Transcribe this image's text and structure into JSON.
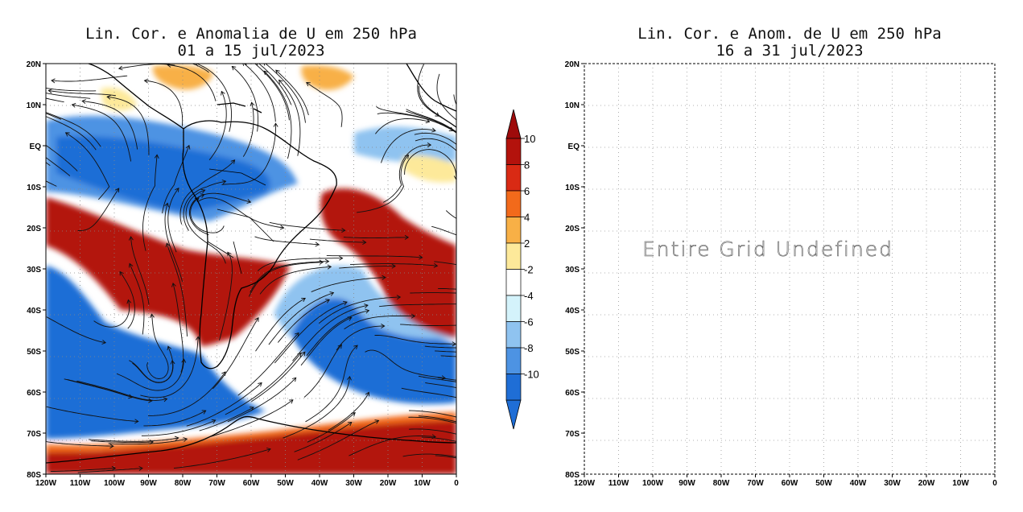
{
  "left_panel": {
    "title_line1": "Lin. Cor. e Anomalia de U em 250 hPa",
    "title_line2": "01 a 15 jul/2023"
  },
  "right_panel": {
    "title_line1": "Lin. Cor. e Anom. de U em 250 hPa",
    "title_line2": "16 a 31 jul/2023",
    "message": "Entire Grid Undefined"
  },
  "axes": {
    "lat_labels": [
      "20N",
      "10N",
      "EQ",
      "10S",
      "20S",
      "30S",
      "40S",
      "50S",
      "60S",
      "70S",
      "80S"
    ],
    "lon_labels": [
      "120W",
      "110W",
      "100W",
      "90W",
      "80W",
      "70W",
      "60W",
      "50W",
      "40W",
      "30W",
      "20W",
      "10W",
      "0"
    ]
  },
  "colorbar": {
    "labels": [
      "10",
      "8",
      "6",
      "4",
      "2",
      "-2",
      "-4",
      "-6",
      "-8",
      "-10"
    ],
    "colors": [
      "#b3120c",
      "#d92a14",
      "#f26a1b",
      "#f8b046",
      "#fde99a",
      "#ffffff",
      "#d4f3fb",
      "#8fc3f0",
      "#4d93e3",
      "#1f6ed6"
    ]
  }
}
